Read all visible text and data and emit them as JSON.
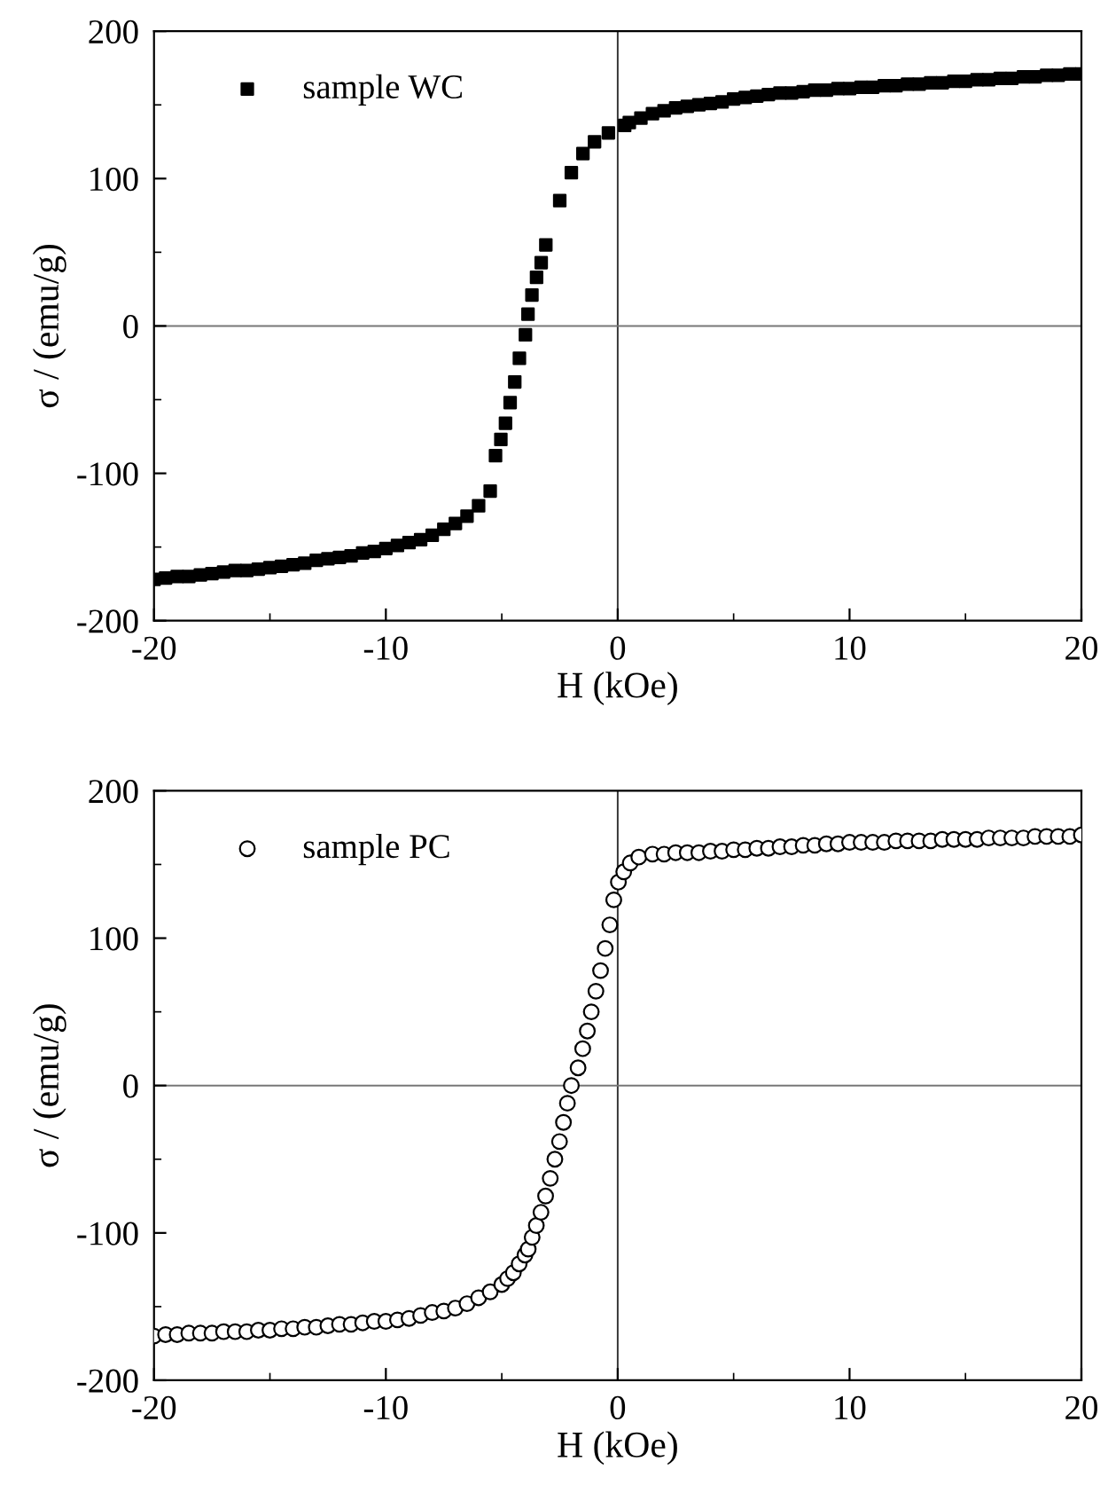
{
  "chart_data": [
    {
      "type": "scatter",
      "xlabel": "H (kOe)",
      "ylabel": "σ / (emu/g)",
      "xlim": [
        -20,
        20
      ],
      "ylim": [
        -200,
        200
      ],
      "xticks": [
        -20,
        -10,
        0,
        10,
        20
      ],
      "yticks": [
        -200,
        -100,
        0,
        100,
        200
      ],
      "grid": false,
      "legend": "top left",
      "ref_lines": [
        {
          "axis": "x",
          "value": 0,
          "color": "#333333"
        },
        {
          "axis": "y",
          "value": 0,
          "color": "#777777"
        }
      ],
      "series": [
        {
          "name": "sample WC",
          "color": "#000000",
          "marker": "square",
          "x": [
            -20,
            -19.5,
            -19,
            -18.5,
            -18,
            -17.5,
            -17,
            -16.5,
            -16,
            -15.5,
            -15,
            -14.5,
            -14,
            -13.5,
            -13,
            -12.5,
            -12,
            -11.5,
            -11,
            -10.5,
            -10,
            -9.5,
            -9,
            -8.5,
            -8,
            -7.5,
            -7,
            -6.5,
            -6,
            -5.5,
            -5.27,
            -5.04,
            -4.84,
            -4.64,
            -4.44,
            -4.24,
            -3.98,
            -3.87,
            -3.7,
            -3.5,
            -3.3,
            -3.1,
            -2.5,
            -2,
            -1.5,
            -1,
            -0.4,
            0.3,
            0.5,
            1,
            1.5,
            2,
            2.5,
            3,
            3.5,
            4,
            4.5,
            5,
            5.5,
            6,
            6.5,
            7,
            7.5,
            8,
            8.5,
            9,
            9.5,
            10,
            10.5,
            11,
            11.5,
            12,
            12.5,
            13,
            13.5,
            14,
            14.5,
            15,
            15.5,
            16,
            16.5,
            17,
            17.5,
            18,
            18.5,
            19,
            19.5,
            20
          ],
          "values": [
            -172,
            -171,
            -170,
            -170,
            -169,
            -168,
            -167,
            -166,
            -166,
            -165,
            -164,
            -163,
            -162,
            -161,
            -159,
            -158,
            -157,
            -156,
            -154,
            -153,
            -151,
            -149,
            -147,
            -145,
            -142,
            -138,
            -134,
            -129,
            -122,
            -112,
            -88,
            -77,
            -66,
            -52,
            -38,
            -22,
            -6,
            8,
            21,
            33,
            43,
            55,
            85,
            104,
            117,
            125,
            131,
            136,
            138,
            141,
            144,
            146,
            148,
            149,
            150,
            151,
            152,
            154,
            155,
            156,
            157,
            158,
            158,
            159,
            160,
            160,
            161,
            161,
            162,
            162,
            163,
            163,
            164,
            164,
            165,
            165,
            166,
            166,
            167,
            167,
            168,
            168,
            169,
            169,
            170,
            170,
            171,
            171
          ]
        }
      ]
    },
    {
      "type": "scatter",
      "xlabel": "H (kOe)",
      "ylabel": "σ / (emu/g)",
      "xlim": [
        -20,
        20
      ],
      "ylim": [
        -200,
        200
      ],
      "xticks": [
        -20,
        -10,
        0,
        10,
        20
      ],
      "yticks": [
        -200,
        -100,
        0,
        100,
        200
      ],
      "grid": false,
      "legend": "top left",
      "ref_lines": [
        {
          "axis": "x",
          "value": 0,
          "color": "#333333"
        },
        {
          "axis": "y",
          "value": 0,
          "color": "#777777"
        }
      ],
      "series": [
        {
          "name": "sample PC",
          "color": "#000000",
          "marker": "circle",
          "x": [
            -20,
            -19.5,
            -19,
            -18.5,
            -18,
            -17.5,
            -17,
            -16.5,
            -16,
            -15.5,
            -15,
            -14.5,
            -14,
            -13.5,
            -13,
            -12.5,
            -12,
            -11.5,
            -11,
            -10.5,
            -10,
            -9.5,
            -9,
            -8.5,
            -8,
            -7.5,
            -7,
            -6.5,
            -6,
            -5.5,
            -5,
            -4.75,
            -4.5,
            -4.25,
            -4,
            -3.86,
            -3.69,
            -3.51,
            -3.31,
            -3.11,
            -2.91,
            -2.71,
            -2.51,
            -2.34,
            -2.17,
            -2,
            -1.71,
            -1.51,
            -1.31,
            -1.14,
            -0.94,
            -0.74,
            -0.54,
            -0.34,
            -0.17,
            0.03,
            0.26,
            0.54,
            0.91,
            1.5,
            2,
            2.5,
            3,
            3.5,
            4,
            4.5,
            5,
            5.5,
            6,
            6.5,
            7,
            7.5,
            8,
            8.5,
            9,
            9.5,
            10,
            10.5,
            11,
            11.5,
            12,
            12.5,
            13,
            13.5,
            14,
            14.5,
            15,
            15.5,
            16,
            16.5,
            17,
            17.5,
            18,
            18.5,
            19,
            19.5,
            20
          ],
          "values": [
            -170,
            -169,
            -169,
            -168,
            -168,
            -168,
            -167,
            -167,
            -167,
            -166,
            -166,
            -165,
            -165,
            -164,
            -164,
            -163,
            -162,
            -162,
            -161,
            -160,
            -160,
            -159,
            -158,
            -156,
            -154,
            -153,
            -151,
            -148,
            -144,
            -140,
            -135,
            -131,
            -127,
            -121,
            -115,
            -111,
            -103,
            -95,
            -86,
            -75,
            -63,
            -50,
            -38,
            -25,
            -12,
            0,
            12,
            25,
            37,
            50,
            64,
            78,
            93,
            109,
            126,
            138,
            145,
            151,
            155,
            157,
            157,
            158,
            158,
            158,
            159,
            159,
            160,
            160,
            161,
            161,
            162,
            162,
            163,
            163,
            164,
            164,
            165,
            165,
            165,
            165,
            166,
            166,
            166,
            166,
            167,
            167,
            167,
            167,
            168,
            168,
            168,
            168,
            169,
            169,
            169,
            169,
            170
          ]
        }
      ]
    }
  ]
}
